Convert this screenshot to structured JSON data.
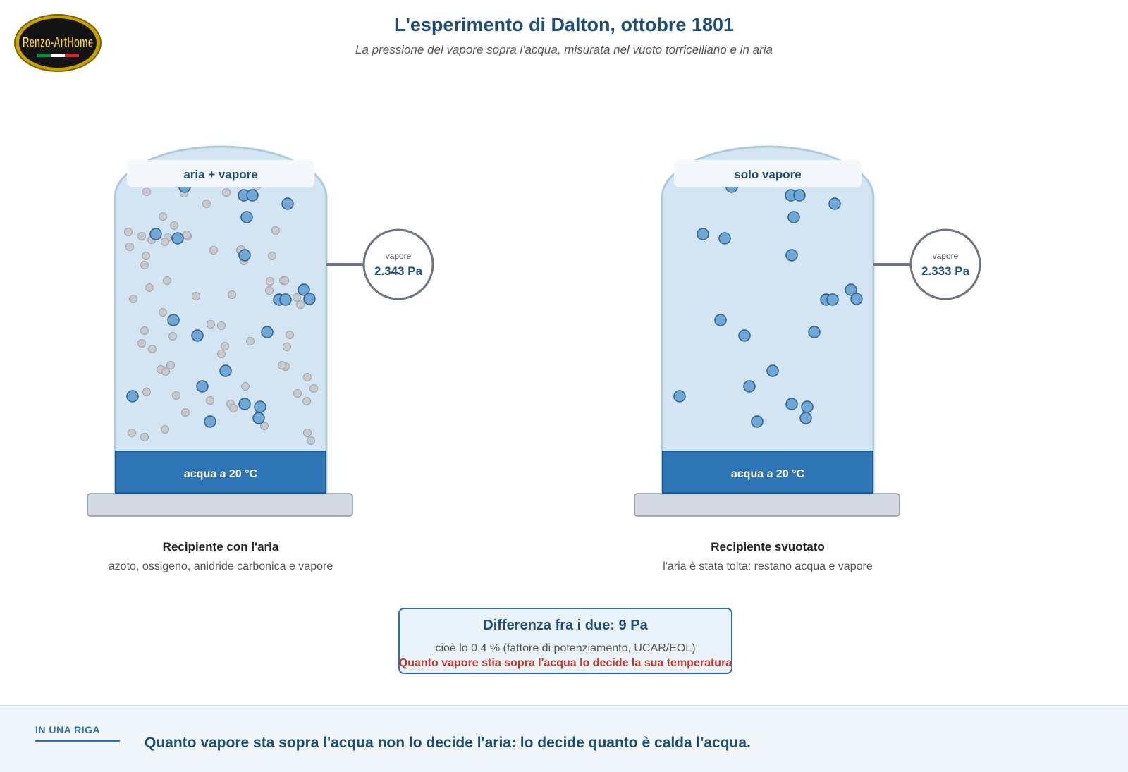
{
  "header": {
    "title": "L'esperimento di Dalton, ottobre 1801",
    "subtitle": "La pressione del vapore sopra l'acqua, misurata nel vuoto torricelliano e in aria"
  },
  "logo": {
    "text": "Renzo-ArtHome",
    "colors": [
      "#009246",
      "#ffffff",
      "#ce2b37"
    ]
  },
  "containers": [
    {
      "label": "aria + vapore",
      "water_label": "acqua a 20 °C",
      "gauge_label": "vapore",
      "gauge_value": "2.343 Pa",
      "caption_title": "Recipiente con l'aria",
      "caption_sub": "azoto, ossigeno, anidride carbonica e vapore",
      "has_air": true
    },
    {
      "label": "solo vapore",
      "water_label": "acqua a 20 °C",
      "gauge_label": "vapore",
      "gauge_value": "2.333 Pa",
      "caption_title": "Recipiente svuotato",
      "caption_sub": "l'aria è stata tolta: restano acqua e vapore",
      "has_air": false
    }
  ],
  "difference": {
    "title": "Differenza fra i due: 9 Pa",
    "detail": "cioè lo 0,4 % (fattore di potenziamento, UCAR/EOL)",
    "note": "Quanto vapore stia sopra l'acqua lo decide la sua temperatura"
  },
  "footer": {
    "label": "IN UNA RIGA",
    "text": "Quanto vapore sta sopra l'acqua non lo decide l'aria: lo decide quanto è calda l'acqua."
  },
  "colors": {
    "vapor": "#6fa8d6",
    "air": "#c8cacd",
    "water": "#2e75b6",
    "glass": "#d3e5f2",
    "title": "#1d4e79",
    "accent_red": "#c0392b"
  }
}
